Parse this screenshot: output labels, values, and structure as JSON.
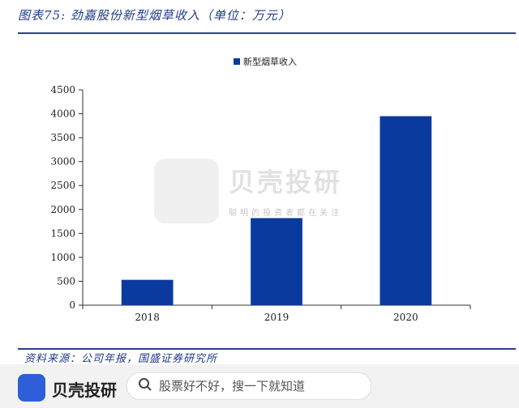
{
  "caption": "图表75: 劲嘉股份新型烟草收入（单位：万元）",
  "source": "资料来源：公司年报，国盛证券研究所",
  "watermark": {
    "title": "贝壳投研",
    "subtitle": "聪明的投资者都在关注"
  },
  "footer": {
    "app_name": "贝壳投研",
    "search_placeholder": "股票好不好，搜一下就知道"
  },
  "colors": {
    "bar": "#0a3a9e",
    "accent": "#1f3a8a"
  },
  "chart_data": {
    "type": "bar",
    "categories": [
      "2018",
      "2019",
      "2020"
    ],
    "series": [
      {
        "name": "新型烟草收入",
        "values": [
          530,
          1820,
          3950
        ]
      }
    ],
    "y_ticks": [
      0,
      500,
      1000,
      1500,
      2000,
      2500,
      3000,
      3500,
      4000,
      4500
    ],
    "ylim": [
      0,
      4500
    ],
    "legend_position": "top-center",
    "grid": false
  }
}
